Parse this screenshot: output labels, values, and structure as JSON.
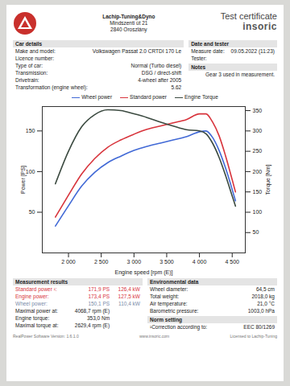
{
  "header": {
    "company": [
      "Lachip-Tuning&Dyno",
      "Mindszenti út 21",
      "2840 Oroszlány"
    ],
    "title": "Test certificate",
    "brand": "insoric"
  },
  "car_details": {
    "heading": "Car details",
    "rows": [
      [
        "Make and model:",
        "Volkswagen Passat 2.0 CRTDI 170 Le"
      ],
      [
        "Licence number:"
      ],
      [
        "Type of car:",
        "Normal (Turbo diesel)"
      ],
      [
        "Transmission:",
        "DSG / direct-shift"
      ],
      [
        "Drivetrain:",
        "4-wheel after 2005"
      ],
      [
        "Transformation (engine wheel):",
        "5.62"
      ]
    ]
  },
  "date_and_tester": {
    "heading": "Date and tester",
    "rows": [
      [
        "Measure date:",
        "09.05.2022 (11:23)"
      ],
      [
        "Tester:"
      ]
    ]
  },
  "notes": {
    "heading": "Notes",
    "text": "Gear 3 used in measurement."
  },
  "chart_data": {
    "type": "line",
    "x_label": "Engine speed [rpm (E)]",
    "y_label": "Power [PS]",
    "y2_label": "Torque [Nm]",
    "x": [
      1800,
      2000,
      2200,
      2400,
      2600,
      2800,
      3000,
      3200,
      3400,
      3600,
      3800,
      4000,
      4100,
      4200,
      4300,
      4400,
      4500,
      4550
    ],
    "xlim": [
      1600,
      4700
    ],
    "xticks": [
      {
        "value": 2000,
        "label": "2 000"
      },
      {
        "value": 2500,
        "label": "2 500"
      },
      {
        "value": 3000,
        "label": "3 000"
      },
      {
        "value": 3500,
        "label": "3 500"
      },
      {
        "value": 4000,
        "label": "4 000"
      },
      {
        "value": 4500,
        "label": "4 500"
      }
    ],
    "ylim": [
      0,
      180
    ],
    "yticks": [
      50,
      100,
      150
    ],
    "y2lim": [
      0,
      360
    ],
    "y2ticks": [
      50,
      100,
      150,
      200,
      250,
      300,
      350
    ],
    "grid": false,
    "legend": "top",
    "series": [
      {
        "name": "Wheel power",
        "color": "#4169d6",
        "values": [
          33,
          58,
          82,
          99,
          111,
          119,
          126,
          131,
          135,
          139,
          143,
          149,
          150,
          142,
          126,
          104,
          78,
          64
        ]
      },
      {
        "name": "Standard power",
        "color": "#d8343c",
        "values": [
          44,
          71,
          97,
          116,
          130,
          139,
          146,
          152,
          156,
          160,
          164,
          171,
          171,
          161,
          144,
          119,
          90,
          75
        ]
      },
      {
        "name": "Engine Torque",
        "color": "#3b4a40",
        "axis": "y2",
        "values": [
          170,
          250,
          310,
          340,
          352,
          350,
          342,
          333,
          322,
          312,
          303,
          300,
          293,
          270,
          235,
          190,
          140,
          115
        ]
      }
    ]
  },
  "measurement_results": {
    "heading": "Measurement results",
    "rows": [
      {
        "cells": [
          "Standard power ¹:",
          "171,9 PS",
          "126,4 kW"
        ],
        "color": "#d8343c"
      },
      {
        "cells": [
          "Engine power:",
          "173,4 PS",
          "127,5 kW"
        ],
        "color": "#d8343c"
      },
      {
        "cells": [
          "Wheel power:",
          "150,1 PS",
          "110,4 kW"
        ],
        "color": "#7a8aa8"
      },
      {
        "cells": [
          "Maximal power at:",
          "4068,7 rpm (E)"
        ],
        "color": "#222222"
      },
      {
        "cells": [
          "Engine torque:",
          "353,0 Nm"
        ],
        "color": "#222222"
      },
      {
        "cells": [
          "Maximal torque at:",
          "2629,4 rpm (E)"
        ],
        "color": "#222222"
      }
    ]
  },
  "environmental_data": {
    "heading": "Environmental data",
    "rows": [
      [
        "Wheel diameter:",
        "64,5 cm"
      ],
      [
        "Total weight:",
        "2018,0 kg"
      ],
      [
        "Air temperature:",
        "21,0 °C"
      ],
      [
        "Barometric pressure:",
        "1003,0 hPa"
      ]
    ]
  },
  "norm_setting": {
    "heading": "Norm setting",
    "rows": [
      [
        "¹Correction according to:",
        "EEC 80/1269"
      ]
    ]
  },
  "footer": [
    "RealPower Software Version: 1.6.1.0",
    "www.insoric.com",
    "Licensed to Lachip-Tuning"
  ]
}
